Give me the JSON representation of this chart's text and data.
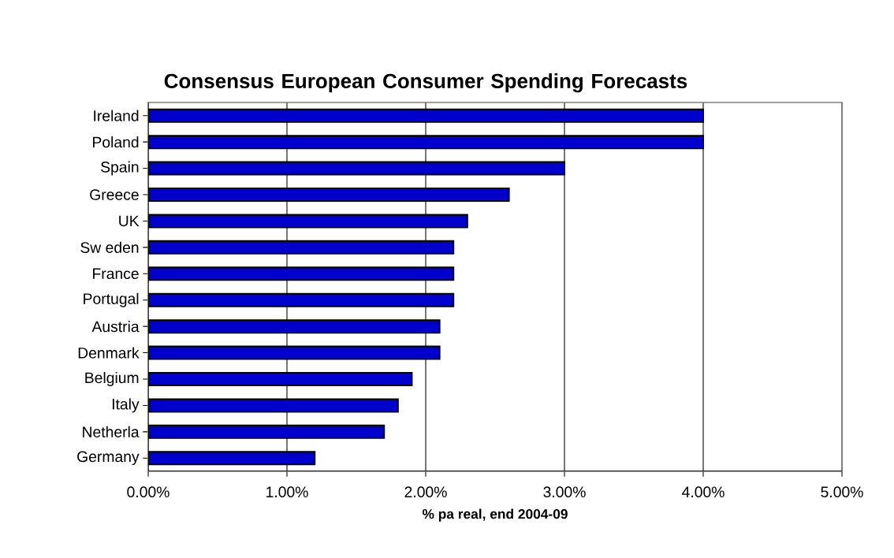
{
  "chart_data": {
    "type": "bar",
    "orientation": "horizontal",
    "title": "Consensus European Consumer Spending Forecasts",
    "xlabel": "% pa real, end 2004-09",
    "categories": [
      "Ireland",
      "Poland",
      "Spain",
      "Greece",
      "UK",
      "Sw eden",
      "France",
      "Portugal",
      "Austria",
      "Denmark",
      "Belgium",
      "Italy",
      "Netherla",
      "Germany"
    ],
    "values": [
      4.0,
      4.0,
      3.0,
      2.6,
      2.3,
      2.2,
      2.2,
      2.2,
      2.1,
      2.1,
      1.9,
      1.8,
      1.7,
      1.2
    ],
    "color": "#0000cc",
    "xlim": [
      0,
      5
    ],
    "xticks": [
      {
        "value": 0,
        "label": "0.00%"
      },
      {
        "value": 1,
        "label": "1.00%"
      },
      {
        "value": 2,
        "label": "2.00%"
      },
      {
        "value": 3,
        "label": "3.00%"
      },
      {
        "value": 4,
        "label": "4.00%"
      },
      {
        "value": 5,
        "label": "5.00%"
      }
    ],
    "grid": "x"
  }
}
